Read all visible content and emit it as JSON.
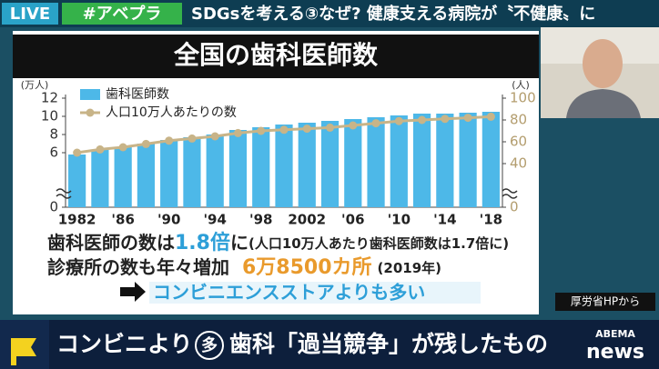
{
  "header": {
    "live": "LIVE",
    "hashtag": "#アベプラ",
    "headline": "SDGsを考える③なぜ? 健康支える病院が〝不健康〟に"
  },
  "chart_data": {
    "type": "bar",
    "title": "全国の歯科医師数",
    "ylabel": "(万人)",
    "y2label": "(人)",
    "categories": [
      "1982",
      null,
      "'86",
      null,
      "'90",
      null,
      "'94",
      null,
      "'98",
      null,
      "2002",
      null,
      "'06",
      null,
      "'10",
      null,
      "'14",
      null,
      "'18"
    ],
    "series": [
      {
        "name": "歯科医師数",
        "type": "bar",
        "color": "#4db8e8",
        "values": [
          5.8,
          6.3,
          6.6,
          7.0,
          7.4,
          7.7,
          8.0,
          8.5,
          8.8,
          9.1,
          9.3,
          9.5,
          9.7,
          9.9,
          10.1,
          10.3,
          10.3,
          10.4,
          10.5
        ]
      },
      {
        "name": "人口10万人あたりの数",
        "type": "line",
        "axis": "y2",
        "color": "#c8b488",
        "values": [
          50,
          53,
          55,
          58,
          61,
          63,
          65,
          68,
          70,
          71,
          72,
          73,
          75,
          77,
          79,
          80,
          81,
          82,
          83
        ]
      }
    ],
    "ylim": [
      0,
      12
    ],
    "yticks": [
      0,
      6,
      8,
      10,
      12
    ],
    "y2lim": [
      0,
      100
    ],
    "y2ticks": [
      0,
      40,
      60,
      80,
      100
    ],
    "legend": "top-left"
  },
  "notes": {
    "line1": {
      "a": "歯科医師の数は",
      "b": "1.8倍",
      "c": "に",
      "d": "(人口10万人あたり歯科医師数は1.7倍に)"
    },
    "line2": {
      "a": "診療所の数も年々増加",
      "b": "6万8500カ所",
      "c": "(2019年)"
    },
    "line3": "コンビニエンスストアよりも多い"
  },
  "source": "厚労省HPから",
  "ticker": {
    "a": "コンビニより",
    "b": "多",
    "c": "歯科「過当競争」が残したもの"
  },
  "logo": {
    "top": "ABEMA",
    "bottom": "news"
  }
}
